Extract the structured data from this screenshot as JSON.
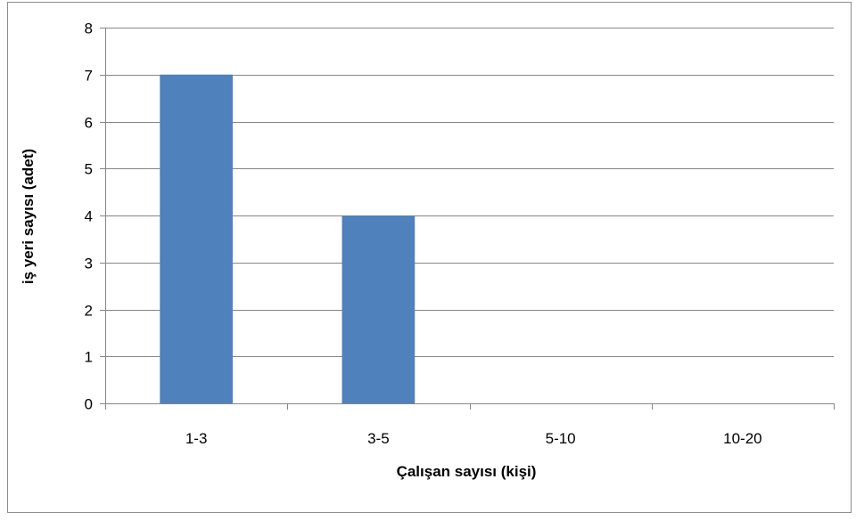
{
  "chart_data": {
    "type": "bar",
    "categories": [
      "1-3",
      "3-5",
      "5-10",
      "10-20"
    ],
    "values": [
      7,
      4,
      0,
      0
    ],
    "xlabel": "Çalışan sayısı  (kişi)",
    "ylabel": "iş yeri sayısı  (adet)",
    "ylim": [
      0,
      8
    ],
    "yticks": [
      0,
      1,
      2,
      3,
      4,
      5,
      6,
      7,
      8
    ],
    "grid": true,
    "legend": "none",
    "bar_color": "#4F81BD",
    "gridline_color": "#868686"
  }
}
